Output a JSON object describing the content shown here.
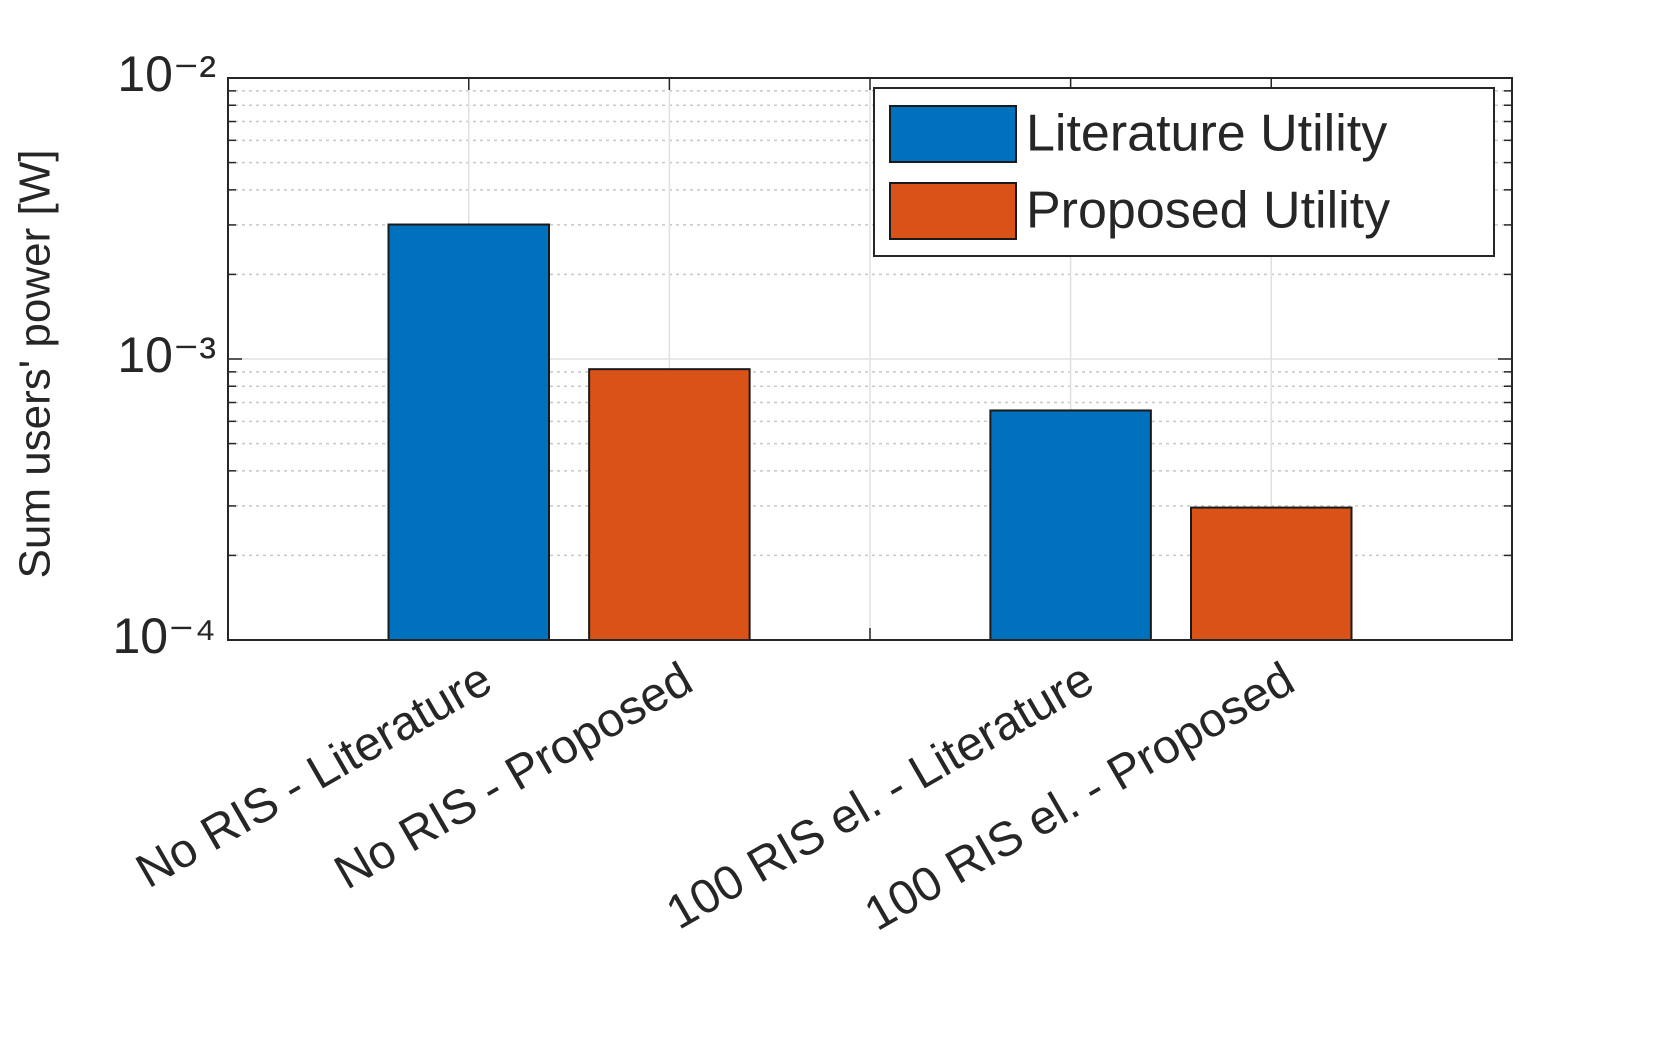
{
  "chart_data": {
    "type": "bar",
    "ylabel": "Sum users' power [W]",
    "categories": [
      "No RIS - Literature",
      "No RIS - Proposed",
      null,
      "100 RIS el. - Literature",
      "100 RIS el. - Proposed"
    ],
    "series": [
      {
        "name": "Literature Utility",
        "color": "#0072bd",
        "values": [
          0.00301,
          null,
          null,
          0.000656,
          null
        ]
      },
      {
        "name": "Proposed Utility",
        "color": "#d95319",
        "values": [
          null,
          0.00092,
          null,
          null,
          0.000296
        ]
      }
    ],
    "ylim": [
      0.0001,
      0.01
    ],
    "yticks": [
      {
        "value": 0.0001,
        "label": "10⁻⁴"
      },
      {
        "value": 0.001,
        "label": "10⁻³"
      },
      {
        "value": 0.01,
        "label": "10⁻²"
      }
    ],
    "log_y": true,
    "grid": true,
    "minor_grid": true,
    "legend": "northeast"
  }
}
